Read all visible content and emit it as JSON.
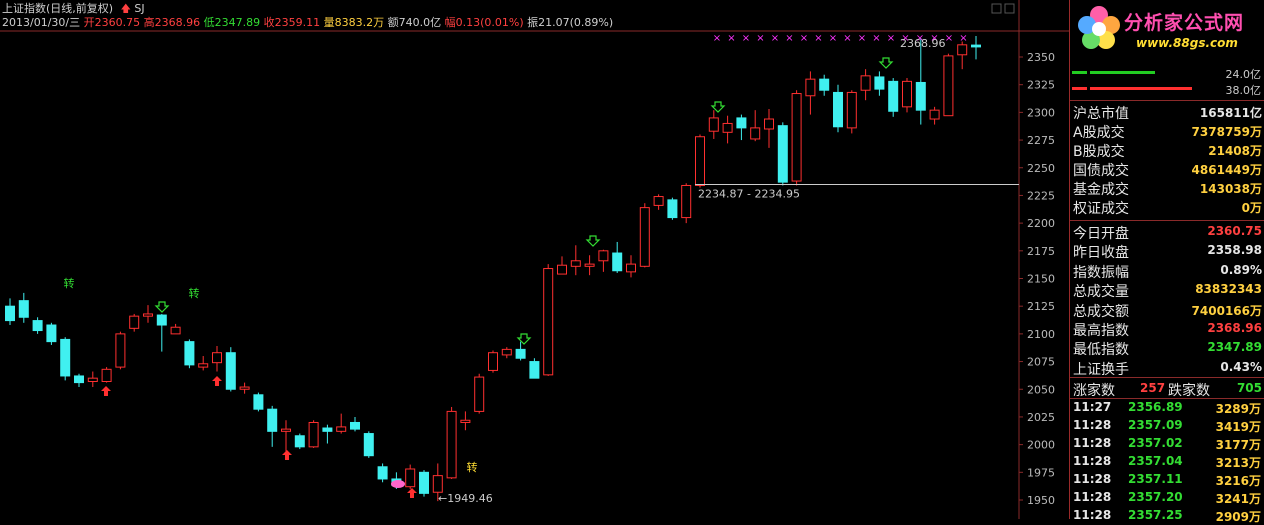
{
  "header": {
    "title": "上证指数(日线,前复权)",
    "indicator": "SJ",
    "date": "2013/01/30/三",
    "open_label": "开",
    "open": "2360.75",
    "high_label": "高",
    "high": "2368.96",
    "low_label": "低",
    "low": "2347.89",
    "close_label": "收",
    "close": "2359.11",
    "volume_label": "量",
    "volume": "8383.2万",
    "amount_label": "额",
    "amount": "740.0亿",
    "change_label": "幅",
    "change": "0.13(0.01%)",
    "amp_label": "振",
    "amp": "21.07(0.89%)"
  },
  "annotations": {
    "high_label": "2368.96",
    "low_label": "←1949.46",
    "gap_label": "2234.87 - 2234.95",
    "zhuan": "转"
  },
  "colors": {
    "up": "#ff3030",
    "down": "#40f0f0",
    "grid": "#8a2a2a",
    "axis_text": "#bbbbbb"
  },
  "sidebar": {
    "logo_text": "分析家公式网",
    "logo_url": "www.88gs.com",
    "bars": [
      {
        "value": "24.0亿",
        "color": "#22cc22"
      },
      {
        "value": "38.0亿",
        "color": "#ff3030"
      }
    ],
    "stats_a": [
      {
        "label": "沪总市值",
        "value": "165811亿",
        "color": "#e6e6e6"
      },
      {
        "label": "A股成交",
        "value": "7378759万",
        "color": "#ffd040"
      },
      {
        "label": "B股成交",
        "value": "21408万",
        "color": "#ffd040"
      },
      {
        "label": "国债成交",
        "value": "4861449万",
        "color": "#ffd040"
      },
      {
        "label": "基金成交",
        "value": "143038万",
        "color": "#ffd040"
      },
      {
        "label": "权证成交",
        "value": "0万",
        "color": "#ffd040"
      }
    ],
    "stats_b": [
      {
        "label": "今日开盘",
        "value": "2360.75",
        "color": "#ff4040"
      },
      {
        "label": "昨日收盘",
        "value": "2358.98",
        "color": "#e6e6e6"
      },
      {
        "label": "指数振幅",
        "value": "0.89%",
        "color": "#e6e6e6"
      },
      {
        "label": "总成交量",
        "value": "83832343",
        "color": "#ffd040"
      },
      {
        "label": "总成交额",
        "value": "7400166万",
        "color": "#ffd040"
      },
      {
        "label": "最高指数",
        "value": "2368.96",
        "color": "#ff4040"
      },
      {
        "label": "最低指数",
        "value": "2347.89",
        "color": "#33dd33"
      },
      {
        "label": "上证换手",
        "value": "0.43%",
        "color": "#e6e6e6"
      }
    ],
    "advance": {
      "up_label": "涨家数",
      "up": "257",
      "down_label": "跌家数",
      "down": "705"
    },
    "ticks": [
      {
        "time": "11:27",
        "price": "2356.89",
        "vol": "3289万"
      },
      {
        "time": "11:28",
        "price": "2357.09",
        "vol": "3419万"
      },
      {
        "time": "11:28",
        "price": "2357.02",
        "vol": "3177万"
      },
      {
        "time": "11:28",
        "price": "2357.04",
        "vol": "3213万"
      },
      {
        "time": "11:28",
        "price": "2357.11",
        "vol": "3216万"
      },
      {
        "time": "11:28",
        "price": "2357.20",
        "vol": "3241万"
      },
      {
        "time": "11:28",
        "price": "2357.25",
        "vol": "2909万"
      }
    ]
  },
  "chart_data": {
    "type": "candlestick",
    "ylim": [
      1940,
      2365
    ],
    "yticks": [
      1950,
      1975,
      2000,
      2025,
      2050,
      2075,
      2100,
      2125,
      2150,
      2175,
      2200,
      2225,
      2250,
      2275,
      2300,
      2325,
      2350
    ],
    "candles": [
      [
        2125,
        2112,
        2132,
        2108
      ],
      [
        2130,
        2115,
        2137,
        2110
      ],
      [
        2112,
        2103,
        2115,
        2100
      ],
      [
        2108,
        2093,
        2110,
        2090
      ],
      [
        2095,
        2062,
        2097,
        2058
      ],
      [
        2062,
        2056,
        2064,
        2052
      ],
      [
        2057,
        2060,
        2066,
        2052
      ],
      [
        2057,
        2068,
        2070,
        2056
      ],
      [
        2070,
        2100,
        2102,
        2068
      ],
      [
        2105,
        2116,
        2118,
        2102
      ],
      [
        2116,
        2118,
        2126,
        2110
      ],
      [
        2117,
        2108,
        2118,
        2084
      ],
      [
        2100,
        2106,
        2109,
        2100
      ],
      [
        2093,
        2072,
        2095,
        2069
      ],
      [
        2070,
        2073,
        2080,
        2067
      ],
      [
        2074,
        2083,
        2089,
        2066
      ],
      [
        2083,
        2050,
        2088,
        2048
      ],
      [
        2050,
        2052,
        2056,
        2046
      ],
      [
        2045,
        2032,
        2047,
        2030
      ],
      [
        2032,
        2012,
        2035,
        1998
      ],
      [
        2012,
        2014,
        2022,
        1993
      ],
      [
        2008,
        1998,
        2010,
        1996
      ],
      [
        1998,
        2020,
        2022,
        1997
      ],
      [
        2015,
        2012,
        2018,
        2001
      ],
      [
        2012,
        2016,
        2028,
        2010
      ],
      [
        2020,
        2014,
        2025,
        2012
      ],
      [
        2010,
        1990,
        2012,
        1988
      ],
      [
        1980,
        1969,
        1983,
        1966
      ],
      [
        1969,
        1963,
        1975,
        1960
      ],
      [
        1962,
        1978,
        1982,
        1960
      ],
      [
        1975,
        1956,
        1977,
        1953
      ],
      [
        1957,
        1972,
        1983,
        1949
      ],
      [
        1970,
        2030,
        2034,
        1969
      ],
      [
        2020,
        2022,
        2030,
        2013
      ],
      [
        2030,
        2061,
        2064,
        2028
      ],
      [
        2067,
        2083,
        2085,
        2065
      ],
      [
        2081,
        2086,
        2088,
        2078
      ],
      [
        2086,
        2078,
        2093,
        2076
      ],
      [
        2075,
        2060,
        2078,
        2060
      ],
      [
        2063,
        2159,
        2163,
        2062
      ],
      [
        2154,
        2162,
        2170,
        2154
      ],
      [
        2161,
        2166,
        2180,
        2153
      ],
      [
        2161,
        2163,
        2171,
        2153
      ],
      [
        2166,
        2175,
        2176,
        2156
      ],
      [
        2173,
        2157,
        2183,
        2155
      ],
      [
        2156,
        2163,
        2171,
        2151
      ],
      [
        2161,
        2214,
        2218,
        2160
      ],
      [
        2216,
        2224,
        2226,
        2212
      ],
      [
        2221,
        2205,
        2223,
        2203
      ],
      [
        2205,
        2234,
        2236,
        2200
      ],
      [
        2234,
        2278,
        2280,
        2232
      ],
      [
        2283,
        2295,
        2302,
        2276
      ],
      [
        2282,
        2290,
        2297,
        2272
      ],
      [
        2295,
        2286,
        2298,
        2275
      ],
      [
        2276,
        2286,
        2302,
        2274
      ],
      [
        2285,
        2294,
        2303,
        2268
      ],
      [
        2288,
        2237,
        2291,
        2234
      ],
      [
        2238,
        2317,
        2320,
        2234
      ],
      [
        2315,
        2330,
        2337,
        2298
      ],
      [
        2330,
        2320,
        2334,
        2315
      ],
      [
        2318,
        2287,
        2325,
        2282
      ],
      [
        2286,
        2318,
        2320,
        2281
      ],
      [
        2320,
        2333,
        2339,
        2311
      ],
      [
        2332,
        2321,
        2337,
        2315
      ],
      [
        2328,
        2301,
        2331,
        2296
      ],
      [
        2305,
        2328,
        2331,
        2300
      ],
      [
        2327,
        2302,
        2367,
        2289
      ],
      [
        2294,
        2302,
        2305,
        2289
      ],
      [
        2297,
        2351,
        2353,
        2297
      ],
      [
        2352,
        2361,
        2364,
        2339
      ],
      [
        2360.75,
        2359.11,
        2368.96,
        2347.89
      ]
    ]
  }
}
